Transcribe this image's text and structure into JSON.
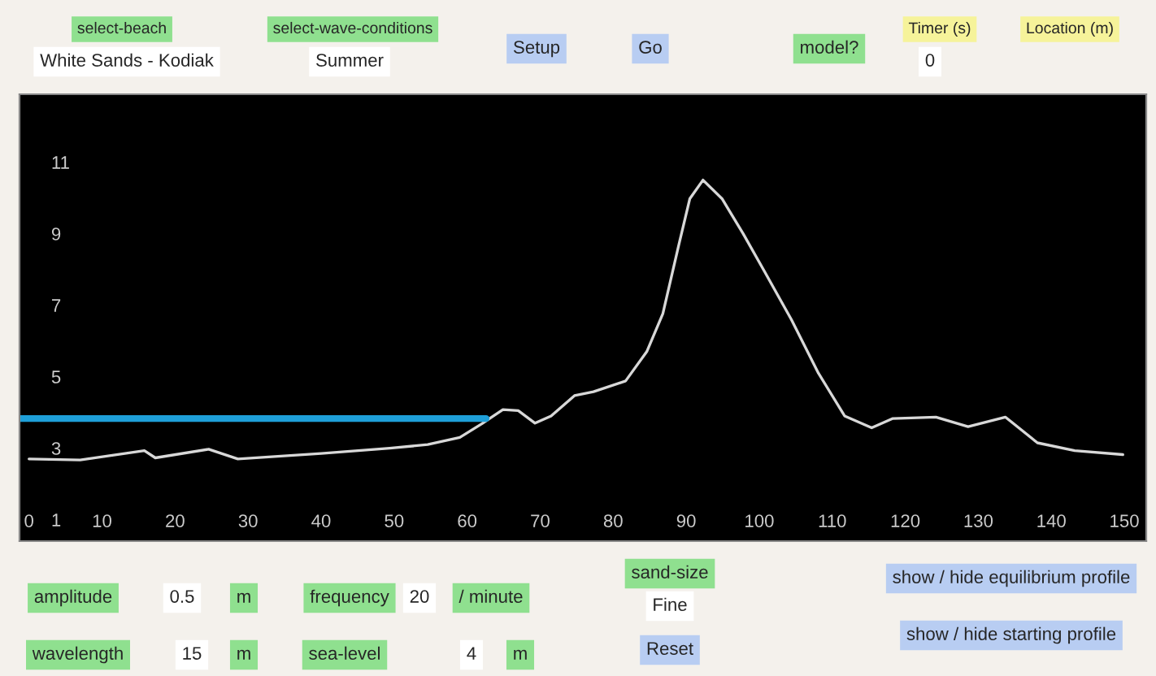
{
  "chart_data": {
    "type": "line",
    "x": [
      0,
      7,
      15.8,
      17.3,
      24.6,
      28.6,
      40,
      49.4,
      54.6,
      59,
      62,
      64.9,
      67,
      69.3,
      71.5,
      74.7,
      77.3,
      81.7,
      84.6,
      86.8,
      89,
      90.5,
      92.3,
      94.9,
      97.8,
      100.7,
      104.4,
      108.1,
      111.7,
      115.4,
      118.3,
      124.2,
      128.6,
      133.7,
      138.1,
      143.2,
      149.8
    ],
    "series": [
      {
        "color": "#d8d8d8",
        "values": [
          2.7,
          2.67,
          2.93,
          2.73,
          2.97,
          2.7,
          2.85,
          3.0,
          3.1,
          3.3,
          3.68,
          4.08,
          4.05,
          3.7,
          3.9,
          4.47,
          4.58,
          4.88,
          5.7,
          6.76,
          8.7,
          9.98,
          10.5,
          9.98,
          9.0,
          7.95,
          6.6,
          5.1,
          3.9,
          3.57,
          3.83,
          3.87,
          3.6,
          3.87,
          3.15,
          2.93,
          2.82
        ]
      },
      {
        "color": "#1e9fd8",
        "x": [
          -1.3,
          62.6
        ],
        "values": [
          3.83,
          3.83
        ]
      }
    ],
    "xlim": [
      -1.3,
      153
    ],
    "ylim": [
      0.4,
      12.9
    ],
    "xticks": [
      0,
      10,
      20,
      30,
      40,
      50,
      60,
      70,
      80,
      90,
      100,
      110,
      120,
      130,
      140,
      150
    ],
    "yticks": [
      1,
      3,
      5,
      7,
      9,
      11
    ],
    "annotations": [
      "select-beach",
      "White Sands - Kodiak",
      "select-wave-conditions",
      "Summer",
      "Setup",
      "Go",
      "model?",
      "Timer (s)",
      "0",
      "Location (m)",
      "amplitude",
      "0.5",
      "m",
      "wavelength",
      "15",
      "m",
      "frequency",
      "20",
      "/ minute",
      "sea-level",
      "4",
      "m",
      "sand-size",
      "Fine",
      "Reset",
      "show / hide equilibrium profile",
      "show / hide starting profile"
    ]
  }
}
